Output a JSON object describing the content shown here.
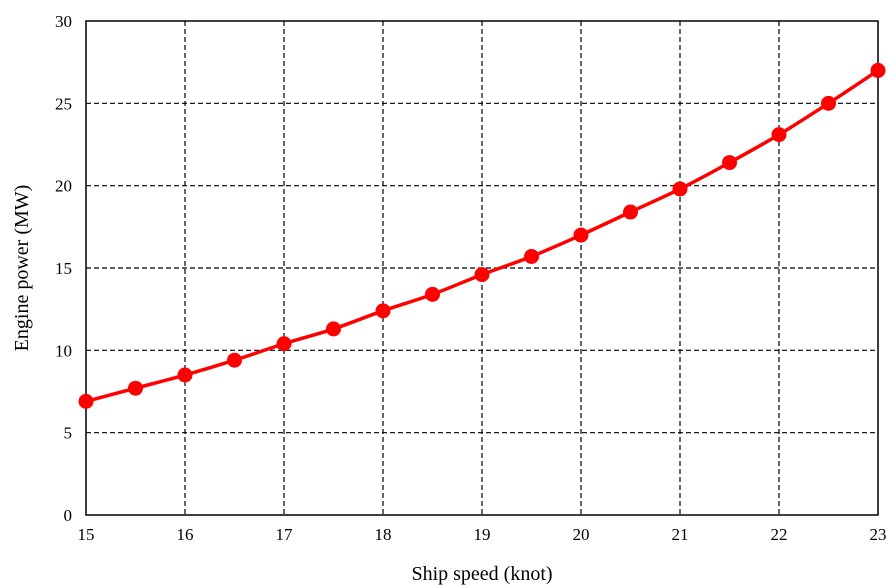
{
  "chart_data": {
    "type": "line",
    "title": "",
    "xlabel": "Ship speed (knot)",
    "ylabel": "Engine power (MW)",
    "xlim": [
      15,
      23
    ],
    "ylim": [
      0,
      30
    ],
    "x_ticks": [
      15,
      16,
      17,
      18,
      19,
      20,
      21,
      22,
      23
    ],
    "y_ticks": [
      0,
      5,
      10,
      15,
      20,
      25,
      30
    ],
    "grid": true,
    "grid_style": "dashed",
    "legend": "none",
    "series": [
      {
        "color": "#ff0000",
        "marker": "circle",
        "x": [
          15,
          15.5,
          16,
          16.5,
          17,
          17.5,
          18,
          18.5,
          19,
          19.5,
          20,
          20.5,
          21,
          21.5,
          22,
          22.5,
          23
        ],
        "y": [
          6.9,
          7.7,
          8.5,
          9.4,
          10.4,
          11.3,
          12.4,
          13.4,
          14.6,
          15.7,
          17.0,
          18.4,
          19.8,
          21.4,
          23.1,
          25.0,
          27.0
        ]
      }
    ]
  }
}
